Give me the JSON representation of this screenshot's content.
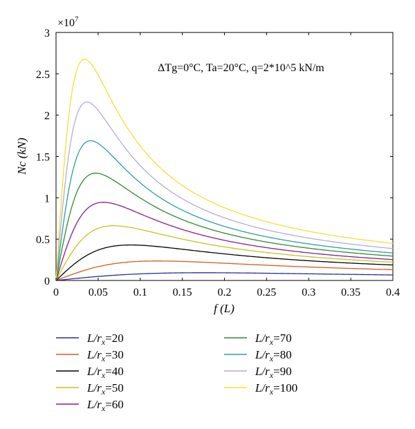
{
  "chart_data": {
    "type": "line",
    "multiplier_label": "×10^7",
    "multiplier_base": "×10",
    "multiplier_exp": "7",
    "annotation": {
      "dtg": "ΔTg=0°C",
      "ta": "Ta=20°C",
      "q": "q=2*10^5 kN/m"
    },
    "xlabel": "f (L)",
    "ylabel": "Nc (kN)",
    "xlim": [
      0,
      0.4
    ],
    "ylim": [
      0,
      3
    ],
    "xticks": [
      0,
      0.05,
      0.1,
      0.15,
      0.2,
      0.25,
      0.3,
      0.35,
      0.4
    ],
    "xtick_labels": [
      "0",
      "0.05",
      "0.1",
      "0.15",
      "0.2",
      "0.25",
      "0.3",
      "0.35",
      "0.4"
    ],
    "yticks": [
      0,
      0.5,
      1,
      1.5,
      2,
      2.5,
      3
    ],
    "ytick_labels": [
      "0",
      "0.5",
      "1",
      "1.5",
      "2",
      "2.5",
      "3"
    ],
    "grid": false,
    "legend_position": "below",
    "series": [
      {
        "name": "L/rx=20",
        "ratio": "20",
        "color": "#2b2b9a",
        "peak_x": 0.2,
        "peak_y": 0.1,
        "end_y": 0.075
      },
      {
        "name": "L/rx=30",
        "ratio": "30",
        "color": "#d45a1f",
        "peak_x": 0.12,
        "peak_y": 0.235,
        "end_y": 0.13
      },
      {
        "name": "L/rx=40",
        "ratio": "40",
        "color": "#000000",
        "peak_x": 0.085,
        "peak_y": 0.42,
        "end_y": 0.18
      },
      {
        "name": "L/rx=50",
        "ratio": "50",
        "color": "#c3c41e",
        "peak_x": 0.068,
        "peak_y": 0.66,
        "end_y": 0.22
      },
      {
        "name": "L/rx=60",
        "ratio": "60",
        "color": "#8a1a8a",
        "peak_x": 0.058,
        "peak_y": 0.96,
        "end_y": 0.26
      },
      {
        "name": "L/rx=70",
        "ratio": "70",
        "color": "#2e8a2e",
        "peak_x": 0.048,
        "peak_y": 1.31,
        "end_y": 0.3
      },
      {
        "name": "L/rx=80",
        "ratio": "80",
        "color": "#2a9e9e",
        "peak_x": 0.042,
        "peak_y": 1.71,
        "end_y": 0.34
      },
      {
        "name": "L/rx=90",
        "ratio": "90",
        "color": "#b8a9d6",
        "peak_x": 0.037,
        "peak_y": 2.17,
        "end_y": 0.39
      },
      {
        "name": "L/rx=100",
        "ratio": "100",
        "color": "#f2e033",
        "peak_x": 0.034,
        "peak_y": 2.68,
        "end_y": 0.45
      }
    ]
  }
}
